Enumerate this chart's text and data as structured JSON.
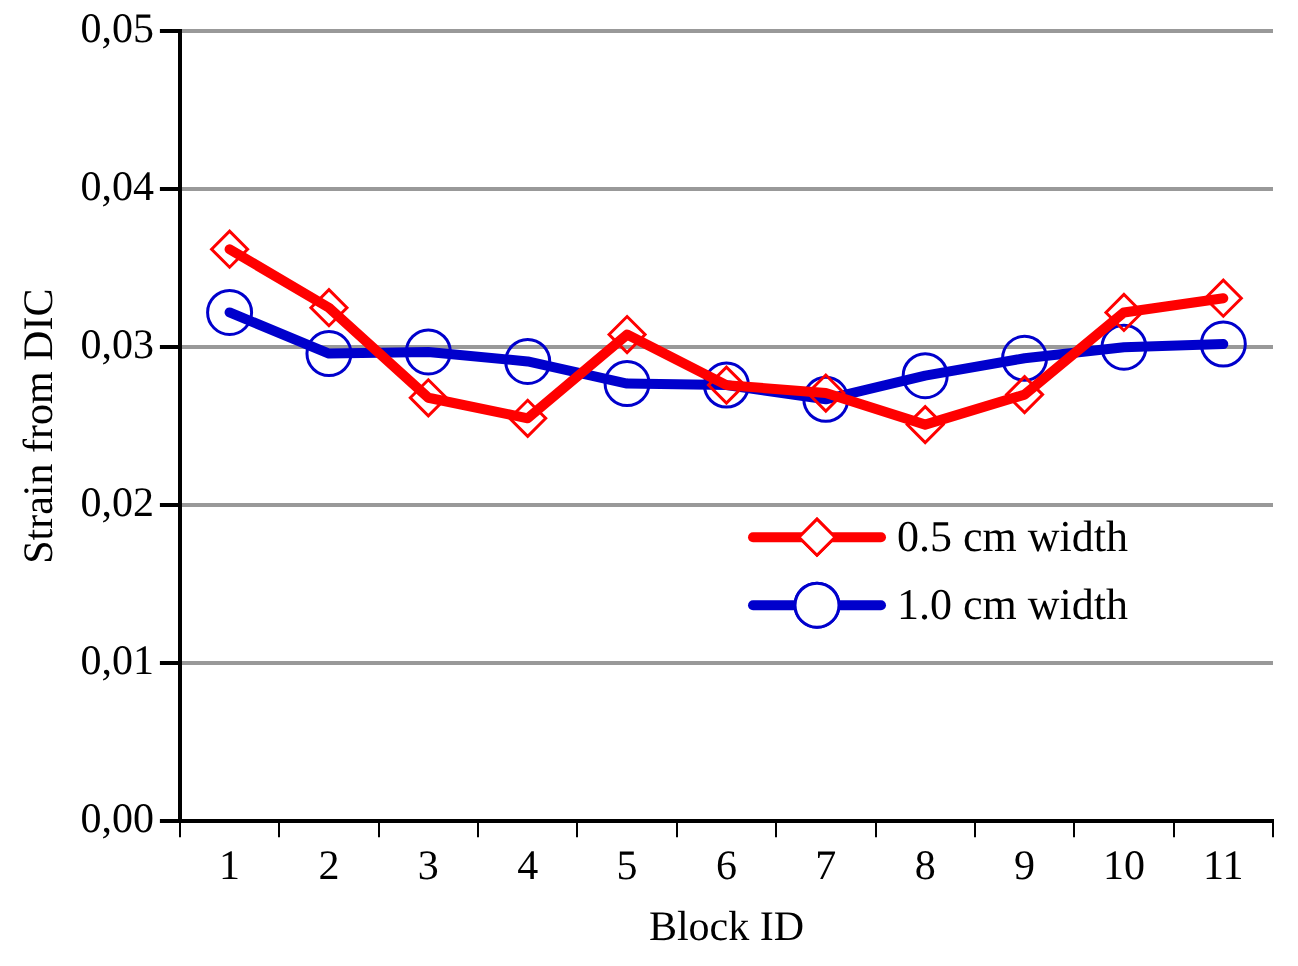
{
  "chart_data": {
    "type": "line",
    "xlabel": "Block ID",
    "ylabel": "Strain from DIC",
    "categories": [
      "1",
      "2",
      "3",
      "4",
      "5",
      "6",
      "7",
      "8",
      "9",
      "10",
      "11"
    ],
    "series": [
      {
        "name": "0.5 cm width",
        "color": "#ff0000",
        "marker": "diamond",
        "values": [
          0.0362,
          0.0325,
          0.0268,
          0.0255,
          0.0308,
          0.0276,
          0.0271,
          0.0251,
          0.027,
          0.0322,
          0.0331
        ]
      },
      {
        "name": "1.0 cm width",
        "color": "#0000cc",
        "marker": "circle",
        "values": [
          0.0322,
          0.0296,
          0.0297,
          0.0291,
          0.0277,
          0.0276,
          0.0267,
          0.0282,
          0.0293,
          0.03,
          0.0302
        ]
      }
    ],
    "ylim": [
      0,
      0.05
    ],
    "yticks": [
      {
        "value": 0,
        "label": "0,00"
      },
      {
        "value": 0.01,
        "label": "0,01"
      },
      {
        "value": 0.02,
        "label": "0,02"
      },
      {
        "value": 0.03,
        "label": "0,03"
      },
      {
        "value": 0.04,
        "label": "0,04"
      },
      {
        "value": 0.05,
        "label": "0,05"
      }
    ],
    "grid": "y",
    "legend": "bottom right",
    "line_style": "solid"
  }
}
